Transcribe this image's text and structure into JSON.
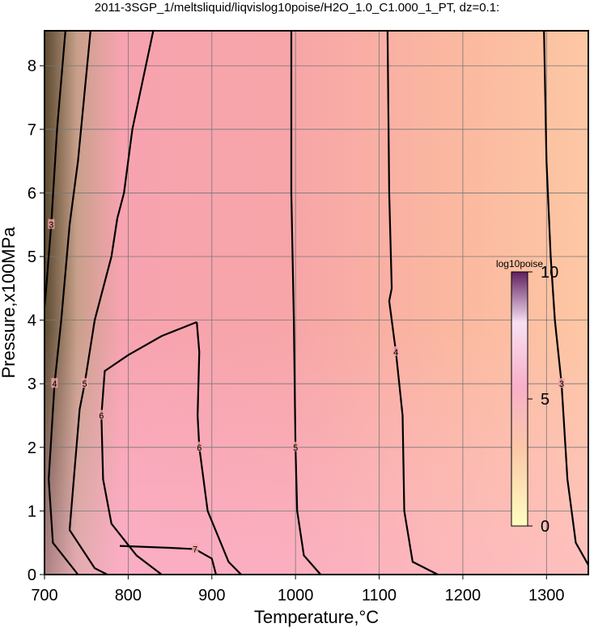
{
  "chart_data": {
    "type": "contour",
    "title": "2011-3SGP_1/meltsliquid/liqvislog10poise/H2O_1.0_C1.000_1_PT, dz=0.1:",
    "x_label": "Temperature,°C",
    "y_label": "Pressure,x100MPa",
    "xlim": [
      700,
      1350
    ],
    "ylim": [
      0,
      8.55
    ],
    "xticks": [
      700,
      800,
      900,
      1000,
      1100,
      1200,
      1300
    ],
    "yticks": [
      0,
      1,
      2,
      3,
      4,
      5,
      6,
      7,
      8
    ],
    "grid": true,
    "color": "#000000",
    "contours": [
      {
        "level": 3,
        "x": [
          1297,
          1300,
          1305,
          1310,
          1318,
          1325,
          1335,
          1350
        ],
        "y": [
          8.55,
          6.5,
          5,
          4,
          3,
          1.5,
          0.5,
          0.15
        ]
      },
      {
        "level": 4,
        "x": [
          1110,
          1112,
          1115,
          1112,
          1120,
          1128,
          1130,
          1140,
          1170
        ],
        "y": [
          8.55,
          6,
          4.5,
          4.3,
          3.5,
          2.5,
          1,
          0.2,
          0
        ]
      },
      {
        "level": 5,
        "x": [
          995,
          995,
          998,
          1000,
          1002,
          1010,
          1030
        ],
        "y": [
          8.55,
          6,
          4,
          2,
          1,
          0.3,
          0
        ]
      },
      {
        "level": 6,
        "x": [
          882,
          840,
          800,
          772,
          768,
          770,
          780,
          810,
          840
        ],
        "y": [
          3.97,
          3.75,
          3.45,
          3.2,
          2.5,
          1.5,
          0.8,
          0.3,
          0
        ]
      },
      {
        "level": 6,
        "x": [
          882,
          885,
          883,
          885,
          895,
          920,
          935
        ],
        "y": [
          3.97,
          3.5,
          2.5,
          2,
          1,
          0.2,
          0
        ]
      },
      {
        "level": 5,
        "x": [
          830,
          805,
          795,
          787,
          780,
          760,
          748,
          742,
          735,
          730,
          760,
          775
        ],
        "y": [
          8.55,
          7,
          6,
          5.6,
          5,
          4,
          3,
          2.6,
          1.5,
          0.7,
          0.1,
          0
        ]
      },
      {
        "level": 4,
        "x": [
          755,
          740,
          730,
          720,
          712,
          705,
          710,
          740
        ],
        "y": [
          8.55,
          6.5,
          5.5,
          4,
          3,
          1.5,
          0.5,
          0
        ]
      },
      {
        "level": 3,
        "x": [
          725,
          715,
          708,
          702,
          700
        ],
        "y": [
          8.55,
          7,
          5.5,
          4.5,
          4.2
        ]
      },
      {
        "level": 7,
        "x": [
          790,
          850,
          880,
          900,
          905
        ],
        "y": [
          0.45,
          0.42,
          0.4,
          0.25,
          0
        ]
      }
    ],
    "colorbar": {
      "label": "log10poise",
      "lim": [
        0,
        10
      ],
      "ticks": [
        0,
        5,
        10
      ]
    }
  }
}
